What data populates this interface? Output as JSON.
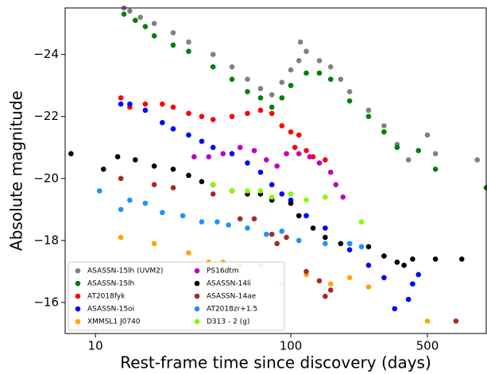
{
  "chart_data": {
    "type": "scatter",
    "xlabel": "Rest-frame time since discovery (days)",
    "ylabel": "Absolute magnitude",
    "xscale": "log",
    "xlim": [
      7,
      1000
    ],
    "ylim": [
      -15,
      -25.5
    ],
    "xticks": [
      10,
      100,
      500
    ],
    "yticks": [
      {
        "value": -24,
        "label": "−24"
      },
      {
        "value": -22,
        "label": "−22"
      },
      {
        "value": -20,
        "label": "−20"
      },
      {
        "value": -18,
        "label": "−18"
      },
      {
        "value": -16,
        "label": "−16"
      }
    ],
    "legend": "lower left",
    "series": [
      {
        "name": "ASASSN-15lh (UVM2)",
        "color": "#808080",
        "x": [
          14,
          15,
          17,
          20,
          25,
          30,
          40,
          50,
          60,
          70,
          80,
          90,
          100,
          110,
          112,
          120,
          140,
          160,
          180,
          200,
          250,
          300,
          350,
          400,
          500,
          550,
          900
        ],
        "values": [
          -25.5,
          -25.4,
          -25.2,
          -25,
          -24.7,
          -24.4,
          -24,
          -23.6,
          -23.2,
          -22.9,
          -22.7,
          -23.1,
          -23.5,
          -23.8,
          -24.4,
          -24.1,
          -23.8,
          -23.6,
          -23.2,
          -22.8,
          -22.2,
          -21.7,
          -21.1,
          -20.6,
          -21.4,
          -20.8,
          -20.6
        ]
      },
      {
        "name": "ASASSN-15lh",
        "color": "#008000",
        "x": [
          14,
          16,
          18,
          20,
          25,
          30,
          40,
          50,
          60,
          70,
          80,
          90,
          100,
          120,
          140,
          160,
          200,
          250,
          300,
          350,
          450,
          550,
          1000
        ],
        "values": [
          -25.3,
          -25.1,
          -24.9,
          -24.6,
          -24.3,
          -24.1,
          -23.6,
          -23.2,
          -22.8,
          -22.6,
          -22.3,
          -22.6,
          -23,
          -23.4,
          -23.4,
          -23.2,
          -22.5,
          -22,
          -21.5,
          -21,
          -20.9,
          -20.3,
          -19.7
        ]
      },
      {
        "name": "AT2018fyk",
        "color": "#ff0000",
        "x": [
          13.5,
          15,
          18,
          22,
          25,
          30,
          35,
          40,
          50,
          60,
          70,
          80,
          90,
          100,
          110,
          105,
          120,
          130,
          150
        ],
        "values": [
          -22.6,
          -22.3,
          -22.4,
          -22.4,
          -22.3,
          -22.1,
          -22,
          -21.9,
          -22,
          -22.1,
          -22.2,
          -22.1,
          -21.7,
          -21.5,
          -21.4,
          -21,
          -20.9,
          -20.7,
          -20.6
        ]
      },
      {
        "name": "ASASSN-15oi",
        "color": "#0000ff",
        "x": [
          13.5,
          15,
          18,
          22,
          25,
          30,
          35,
          40,
          50,
          60,
          70,
          80,
          90,
          100,
          120,
          150,
          200,
          250,
          300,
          340,
          400,
          420,
          450
        ],
        "values": [
          -22.4,
          -22.4,
          -22.2,
          -21.8,
          -21.6,
          -21.4,
          -21.2,
          -21,
          -20.8,
          -20.5,
          -20.2,
          -19.8,
          -19.5,
          -19.3,
          -18.8,
          -18.4,
          -17.7,
          -17.2,
          -16.8,
          -15.8,
          -16.1,
          -16.6,
          -16.9
        ]
      },
      {
        "name": "XMMSL1 J0740",
        "color": "#ffa500",
        "x": [
          13.5,
          20,
          30,
          38,
          45,
          55,
          70,
          90,
          120,
          160,
          200,
          250,
          500
        ],
        "values": [
          -18.1,
          -17.9,
          -17.6,
          -17.3,
          -17.3,
          -17.2,
          -17.2,
          -16.6,
          -16.9,
          -16.6,
          -16.8,
          -16.5,
          -15.4
        ]
      },
      {
        "name": "PS16dtm",
        "color": "#bf00bf",
        "x": [
          32,
          38,
          45,
          55,
          65,
          75,
          85,
          95,
          110,
          125,
          140,
          160,
          170,
          185
        ],
        "values": [
          -20.7,
          -20.7,
          -20.8,
          -21,
          -20.9,
          -20.6,
          -20.4,
          -20.8,
          -20.8,
          -20.7,
          -20.5,
          -20.2,
          -19.8,
          -19.4
        ]
      },
      {
        "name": "ASASSN-14li",
        "color": "#000000",
        "x": [
          7.5,
          11,
          13,
          16,
          20,
          25,
          30,
          35,
          40,
          50,
          60,
          70,
          80,
          100,
          110,
          130,
          150,
          180,
          200,
          250,
          300,
          350,
          380,
          420,
          550,
          750
        ],
        "values": [
          -20.8,
          -20.3,
          -20.7,
          -20.6,
          -20.4,
          -20.3,
          -20.1,
          -19.9,
          -19.8,
          -19.6,
          -19.5,
          -19.5,
          -19.3,
          -19.2,
          -18.8,
          -18.4,
          -18.1,
          -17.9,
          -17.9,
          -17.8,
          -17.5,
          -17.3,
          -17.2,
          -17.4,
          -17.4,
          -17.4
        ]
      },
      {
        "name": "ASASSN-14ae",
        "color": "#a52a2a",
        "x": [
          13.5,
          20,
          25,
          40,
          55,
          65,
          80,
          85,
          95,
          120,
          140,
          150,
          160,
          700
        ],
        "values": [
          -20,
          -19.8,
          -19.7,
          -19.5,
          -18.7,
          -18.7,
          -18.2,
          -17.9,
          -18.1,
          -17,
          -16.7,
          -16.2,
          -16.4,
          -15.4
        ]
      },
      {
        "name": "AT2018zr+1.5",
        "color": "#1e90ff",
        "x": [
          10.5,
          13.5,
          15,
          18,
          22,
          28,
          35,
          42,
          48,
          60,
          75,
          90,
          110,
          150,
          200,
          230
        ],
        "values": [
          -19.6,
          -19,
          -19.3,
          -19.2,
          -18.9,
          -18.8,
          -18.6,
          -18.6,
          -18.5,
          -18.4,
          -18.2,
          -18.3,
          -18,
          -17.9,
          -17.9,
          -17.8
        ]
      },
      {
        "name": "D313 - 2 (g)",
        "color": "#7fff00",
        "x": [
          40,
          50,
          60,
          70,
          80,
          100,
          120,
          150,
          230
        ],
        "values": [
          -19.8,
          -19.6,
          -19.6,
          -19.6,
          -19.4,
          -19.5,
          -19.3,
          -19.4,
          -18.6
        ]
      }
    ]
  }
}
